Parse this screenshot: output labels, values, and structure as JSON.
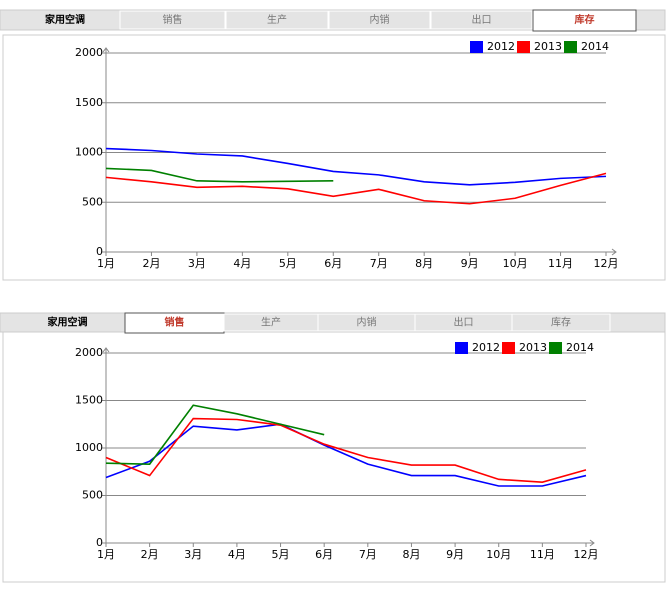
{
  "panels": [
    {
      "title": "家用空调",
      "tabs": [
        "销售",
        "生产",
        "内销",
        "出口",
        "库存"
      ],
      "active": 4
    },
    {
      "title": "家用空调",
      "tabs": [
        "销售",
        "生产",
        "内销",
        "出口",
        "库存"
      ],
      "active": 0
    }
  ],
  "chart_data": [
    {
      "type": "line",
      "categories": [
        "1月",
        "2月",
        "3月",
        "4月",
        "5月",
        "6月",
        "7月",
        "8月",
        "9月",
        "10月",
        "11月",
        "12月"
      ],
      "ylim": [
        0,
        2000
      ],
      "yticks": [
        0,
        500,
        1000,
        1500,
        2000
      ],
      "grid": true,
      "legend": "top-right",
      "series": [
        {
          "name": "2012",
          "color": "#0000ff",
          "values": [
            1040,
            1020,
            985,
            965,
            890,
            810,
            775,
            705,
            675,
            700,
            740,
            760
          ]
        },
        {
          "name": "2013",
          "color": "#ff0000",
          "values": [
            750,
            705,
            650,
            660,
            635,
            560,
            630,
            515,
            485,
            540,
            670,
            790
          ]
        },
        {
          "name": "2014",
          "color": "#008000",
          "values": [
            840,
            820,
            715,
            705,
            710,
            715,
            null,
            null,
            null,
            null,
            null,
            null
          ]
        }
      ]
    },
    {
      "type": "line",
      "categories": [
        "1月",
        "2月",
        "3月",
        "4月",
        "5月",
        "6月",
        "7月",
        "8月",
        "9月",
        "10月",
        "11月",
        "12月"
      ],
      "ylim": [
        0,
        2000
      ],
      "yticks": [
        0,
        500,
        1000,
        1500,
        2000
      ],
      "grid": true,
      "legend": "top-right",
      "series": [
        {
          "name": "2012",
          "color": "#0000ff",
          "values": [
            690,
            860,
            1230,
            1190,
            1250,
            1030,
            830,
            710,
            710,
            600,
            600,
            710
          ]
        },
        {
          "name": "2013",
          "color": "#ff0000",
          "values": [
            900,
            710,
            1310,
            1300,
            1240,
            1040,
            900,
            820,
            820,
            670,
            640,
            770
          ]
        },
        {
          "name": "2014",
          "color": "#008000",
          "values": [
            840,
            830,
            1450,
            1360,
            1250,
            1140,
            null,
            null,
            null,
            null,
            null,
            null
          ]
        }
      ]
    }
  ]
}
